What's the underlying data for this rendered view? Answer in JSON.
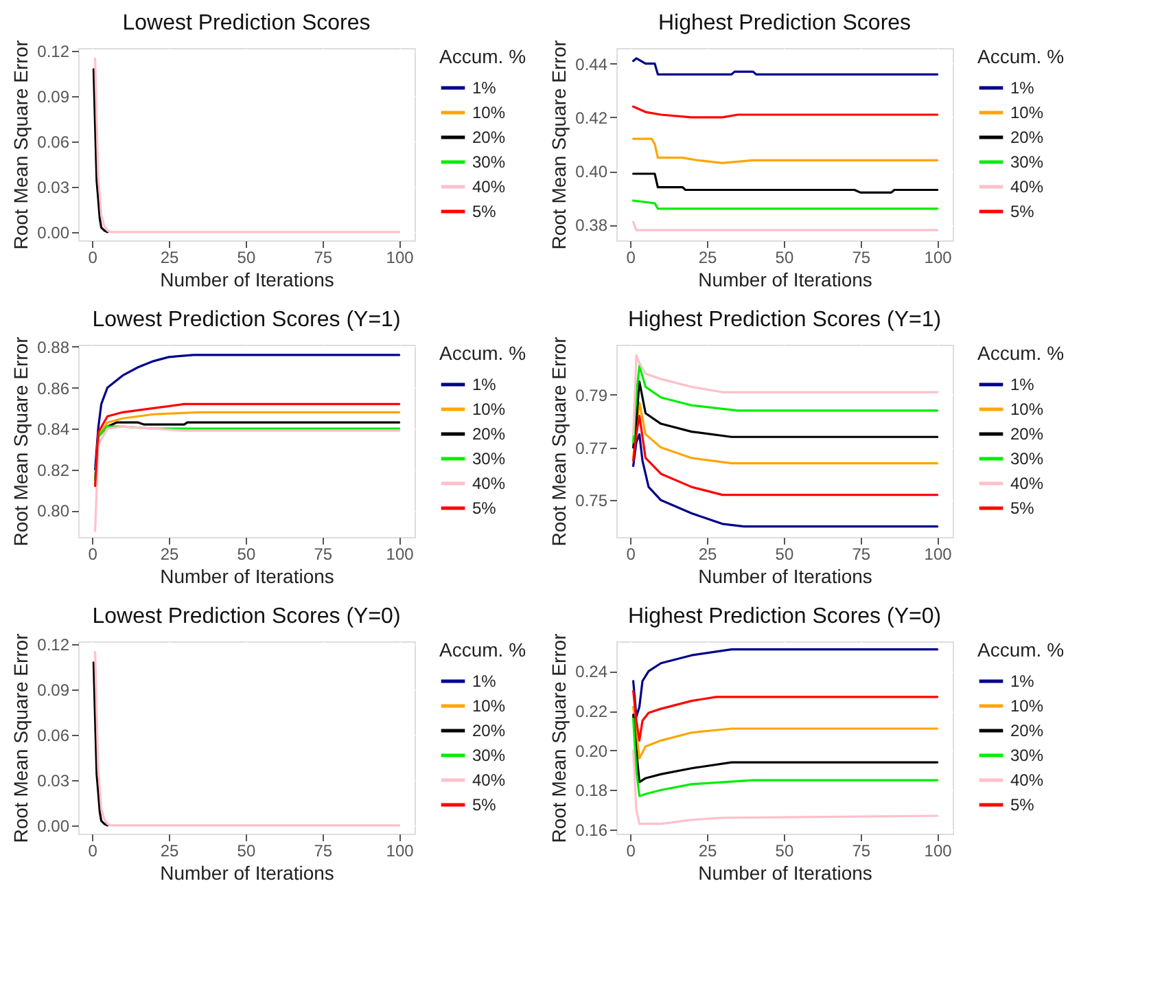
{
  "chart_data": [
    {
      "type": "line",
      "title": "Lowest Prediction Scores",
      "xlabel": "Number of Iterations",
      "ylabel": "Root Mean Square Error",
      "legend_title": "Accum. %",
      "legend": "right",
      "grid": true,
      "xlim": [
        -4.5,
        105
      ],
      "xticks": [
        0,
        25,
        50,
        75,
        100
      ],
      "ylim": [
        -0.0055,
        0.122
      ],
      "yticks": [
        {
          "value": 0,
          "label": "0.00"
        },
        0.03,
        0.06,
        0.09,
        0.12
      ],
      "series": [
        {
          "name": "1%",
          "color": "#00008b"
        },
        {
          "name": "10%",
          "color": "#ffa500"
        },
        {
          "name": "20%",
          "color": "#000000",
          "x": [
            0.5,
            1,
            1.5,
            2,
            2.5,
            3,
            4,
            5
          ],
          "values": [
            0.108,
            0.07,
            0.034,
            0.022,
            0.009,
            0.003,
            0.001,
            0
          ]
        },
        {
          "name": "30%",
          "color": "#00ee00"
        },
        {
          "name": "40%",
          "color": "#ffc0cb",
          "x": [
            1,
            1.5,
            2,
            2.5,
            3,
            4,
            5,
            6,
            100
          ],
          "values": [
            0.115,
            0.075,
            0.037,
            0.025,
            0.011,
            0.004,
            0.001,
            0,
            0
          ]
        },
        {
          "name": "5%",
          "color": "#ff0000"
        }
      ]
    },
    {
      "type": "line",
      "title": "Highest Prediction Scores",
      "xlabel": "Number of Iterations",
      "ylabel": "Root Mean Square Error",
      "legend_title": "Accum. %",
      "legend": "right",
      "grid": true,
      "xlim": [
        -4.5,
        105
      ],
      "xticks": [
        0,
        25,
        50,
        75,
        100
      ],
      "ylim": [
        0.3742,
        0.4458
      ],
      "yticks": [
        0.38,
        {
          "value": 0.4,
          "label": "0.40"
        },
        0.42,
        0.44
      ],
      "series": [
        {
          "name": "1%",
          "color": "#00008b",
          "x": [
            1,
            2,
            5,
            8,
            9,
            20,
            33,
            34,
            40,
            41,
            100
          ],
          "values": [
            0.441,
            0.442,
            0.44,
            0.44,
            0.436,
            0.436,
            0.436,
            0.437,
            0.437,
            0.436,
            0.436
          ]
        },
        {
          "name": "10%",
          "color": "#ffa500",
          "x": [
            1,
            7,
            8,
            9,
            15,
            17,
            22,
            30,
            40,
            100
          ],
          "values": [
            0.412,
            0.412,
            0.41,
            0.405,
            0.405,
            0.405,
            0.404,
            0.403,
            0.404,
            0.404
          ]
        },
        {
          "name": "20%",
          "color": "#000000",
          "x": [
            1,
            8,
            9,
            17,
            18,
            73,
            75,
            85,
            86,
            100
          ],
          "values": [
            0.399,
            0.399,
            0.394,
            0.394,
            0.393,
            0.393,
            0.392,
            0.392,
            0.393,
            0.393
          ]
        },
        {
          "name": "30%",
          "color": "#00ee00",
          "x": [
            1,
            8,
            9,
            100
          ],
          "values": [
            0.389,
            0.388,
            0.386,
            0.386
          ]
        },
        {
          "name": "40%",
          "color": "#ffc0cb",
          "x": [
            1,
            2,
            100
          ],
          "values": [
            0.381,
            0.378,
            0.378
          ]
        },
        {
          "name": "5%",
          "color": "#ff0000",
          "x": [
            1,
            5,
            10,
            20,
            30,
            35,
            100
          ],
          "values": [
            0.424,
            0.422,
            0.421,
            0.42,
            0.42,
            0.421,
            0.421
          ]
        }
      ]
    },
    {
      "type": "line",
      "title": "Lowest Prediction Scores (Y=1)",
      "xlabel": "Number of Iterations",
      "ylabel": "Root Mean Square Error",
      "legend_title": "Accum. %",
      "legend": "right",
      "grid": true,
      "xlim": [
        -4.5,
        105
      ],
      "xticks": [
        0,
        25,
        50,
        75,
        100
      ],
      "ylim": [
        0.787,
        0.881
      ],
      "yticks": [
        {
          "value": 0.8,
          "label": "0.80"
        },
        0.82,
        0.84,
        0.86,
        0.88
      ],
      "series": [
        {
          "name": "1%",
          "color": "#00008b",
          "x": [
            1,
            2,
            3,
            5,
            10,
            15,
            20,
            25,
            33,
            100
          ],
          "values": [
            0.82,
            0.84,
            0.852,
            0.86,
            0.866,
            0.87,
            0.873,
            0.875,
            0.876,
            0.876
          ]
        },
        {
          "name": "10%",
          "color": "#ffa500",
          "x": [
            1,
            2,
            5,
            10,
            20,
            35,
            100
          ],
          "values": [
            0.812,
            0.836,
            0.843,
            0.845,
            0.847,
            0.848,
            0.848
          ]
        },
        {
          "name": "20%",
          "color": "#000000",
          "x": [
            1,
            2,
            5,
            8,
            15,
            17,
            30,
            31,
            100
          ],
          "values": [
            0.815,
            0.836,
            0.841,
            0.843,
            0.843,
            0.842,
            0.842,
            0.843,
            0.843
          ]
        },
        {
          "name": "30%",
          "color": "#00ee00",
          "x": [
            1,
            2,
            5,
            10,
            20,
            100
          ],
          "values": [
            0.815,
            0.836,
            0.841,
            0.841,
            0.84,
            0.84
          ]
        },
        {
          "name": "40%",
          "color": "#ffc0cb",
          "x": [
            1,
            2,
            5,
            10,
            30,
            100
          ],
          "values": [
            0.79,
            0.832,
            0.84,
            0.841,
            0.839,
            0.839
          ]
        },
        {
          "name": "5%",
          "color": "#ff0000",
          "x": [
            1,
            2,
            5,
            10,
            20,
            30,
            100
          ],
          "values": [
            0.812,
            0.838,
            0.846,
            0.848,
            0.85,
            0.852,
            0.852
          ]
        }
      ]
    },
    {
      "type": "line",
      "title": "Highest Prediction Scores (Y=1)",
      "xlabel": "Number of Iterations",
      "ylabel": "Root Mean Square Error",
      "legend_title": "Accum. %",
      "legend": "right",
      "grid": true,
      "xlim": [
        -4.5,
        105
      ],
      "xticks": [
        0,
        25,
        50,
        75,
        100
      ],
      "ylim": [
        0.736,
        0.809
      ],
      "yticks": [
        0.75,
        0.77,
        0.79
      ],
      "series": [
        {
          "name": "1%",
          "color": "#00008b",
          "x": [
            1,
            2,
            3,
            4,
            6,
            10,
            20,
            30,
            37,
            100
          ],
          "values": [
            0.763,
            0.772,
            0.775,
            0.765,
            0.755,
            0.75,
            0.745,
            0.741,
            0.74,
            0.74
          ]
        },
        {
          "name": "10%",
          "color": "#ffa500",
          "x": [
            1,
            2,
            3,
            5,
            10,
            20,
            33,
            100
          ],
          "values": [
            0.766,
            0.778,
            0.787,
            0.775,
            0.77,
            0.766,
            0.764,
            0.764
          ]
        },
        {
          "name": "20%",
          "color": "#000000",
          "x": [
            1,
            2,
            3,
            5,
            10,
            20,
            33,
            100
          ],
          "values": [
            0.77,
            0.78,
            0.795,
            0.783,
            0.779,
            0.776,
            0.774,
            0.774
          ]
        },
        {
          "name": "30%",
          "color": "#00ee00",
          "x": [
            1,
            2,
            3,
            5,
            10,
            20,
            35,
            100
          ],
          "values": [
            0.772,
            0.79,
            0.801,
            0.793,
            0.789,
            0.786,
            0.784,
            0.784
          ]
        },
        {
          "name": "40%",
          "color": "#ffc0cb",
          "x": [
            1,
            2,
            3,
            5,
            10,
            20,
            30,
            100
          ],
          "values": [
            0.775,
            0.805,
            0.802,
            0.798,
            0.796,
            0.793,
            0.791,
            0.791
          ]
        },
        {
          "name": "5%",
          "color": "#ff0000",
          "x": [
            1,
            2,
            3,
            5,
            10,
            20,
            30,
            100
          ],
          "values": [
            0.765,
            0.775,
            0.782,
            0.766,
            0.76,
            0.755,
            0.752,
            0.752
          ]
        }
      ]
    },
    {
      "type": "line",
      "title": "Lowest Prediction Scores (Y=0)",
      "xlabel": "Number of Iterations",
      "ylabel": "Root Mean Square Error",
      "legend_title": "Accum. %",
      "legend": "right",
      "grid": true,
      "xlim": [
        -4.5,
        105
      ],
      "xticks": [
        0,
        25,
        50,
        75,
        100
      ],
      "ylim": [
        -0.0055,
        0.122
      ],
      "yticks": [
        {
          "value": 0,
          "label": "0.00"
        },
        0.03,
        0.06,
        0.09,
        0.12
      ],
      "series": [
        {
          "name": "1%",
          "color": "#00008b"
        },
        {
          "name": "10%",
          "color": "#ffa500"
        },
        {
          "name": "20%",
          "color": "#000000",
          "x": [
            0.5,
            1,
            1.5,
            2,
            2.5,
            3,
            4,
            5
          ],
          "values": [
            0.108,
            0.07,
            0.034,
            0.022,
            0.009,
            0.003,
            0.001,
            0
          ]
        },
        {
          "name": "30%",
          "color": "#00ee00"
        },
        {
          "name": "40%",
          "color": "#ffc0cb",
          "x": [
            1,
            1.5,
            2,
            2.5,
            3,
            4,
            5,
            6,
            100
          ],
          "values": [
            0.115,
            0.075,
            0.037,
            0.025,
            0.011,
            0.004,
            0.001,
            0,
            0
          ]
        },
        {
          "name": "5%",
          "color": "#ff0000"
        }
      ]
    },
    {
      "type": "line",
      "title": "Highest Prediction Scores (Y=0)",
      "xlabel": "Number of Iterations",
      "ylabel": "Root Mean Square Error",
      "legend_title": "Accum. %",
      "legend": "right",
      "grid": true,
      "xlim": [
        -4.5,
        105
      ],
      "xticks": [
        0,
        25,
        50,
        75,
        100
      ],
      "ylim": [
        0.158,
        0.255
      ],
      "yticks": [
        0.16,
        0.18,
        {
          "value": 0.2,
          "label": "0.20"
        },
        0.22,
        0.24
      ],
      "series": [
        {
          "name": "1%",
          "color": "#00008b",
          "x": [
            1,
            2,
            3,
            4,
            6,
            10,
            20,
            33,
            100
          ],
          "values": [
            0.235,
            0.217,
            0.222,
            0.235,
            0.24,
            0.244,
            0.248,
            0.251,
            0.251
          ]
        },
        {
          "name": "10%",
          "color": "#ffa500",
          "x": [
            1,
            2,
            3,
            5,
            10,
            20,
            33,
            100
          ],
          "values": [
            0.222,
            0.21,
            0.196,
            0.202,
            0.205,
            0.209,
            0.211,
            0.211
          ]
        },
        {
          "name": "20%",
          "color": "#000000",
          "x": [
            1,
            2,
            3,
            5,
            10,
            20,
            33,
            100
          ],
          "values": [
            0.218,
            0.2,
            0.184,
            0.186,
            0.188,
            0.191,
            0.194,
            0.194
          ]
        },
        {
          "name": "30%",
          "color": "#00ee00",
          "x": [
            1,
            2,
            3,
            5,
            10,
            20,
            40,
            100
          ],
          "values": [
            0.216,
            0.19,
            0.177,
            0.178,
            0.18,
            0.183,
            0.185,
            0.185
          ]
        },
        {
          "name": "40%",
          "color": "#ffc0cb",
          "x": [
            1,
            2,
            3,
            10,
            20,
            30,
            100
          ],
          "values": [
            0.2,
            0.17,
            0.163,
            0.163,
            0.165,
            0.166,
            0.167
          ]
        },
        {
          "name": "5%",
          "color": "#ff0000",
          "x": [
            1,
            2,
            3,
            4,
            6,
            10,
            20,
            28,
            100
          ],
          "values": [
            0.23,
            0.215,
            0.205,
            0.215,
            0.219,
            0.221,
            0.225,
            0.227,
            0.227
          ]
        }
      ]
    }
  ]
}
